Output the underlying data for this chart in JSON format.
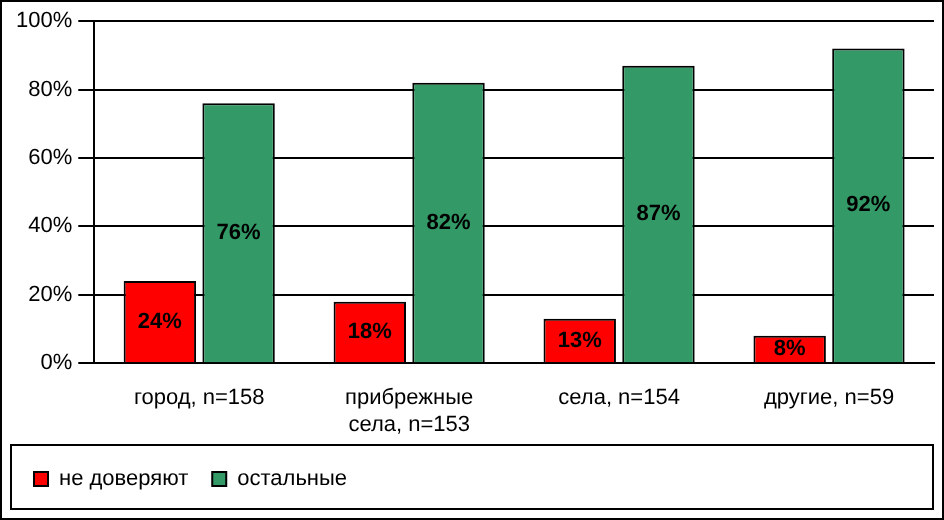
{
  "chart_data": {
    "type": "bar",
    "categories": [
      "город, n=158",
      "прибрежные села, n=153",
      "села, n=154",
      "другие, n=59"
    ],
    "series": [
      {
        "name": "не доверяют",
        "color": "#ff0000",
        "values": [
          24,
          18,
          13,
          8
        ],
        "value_labels": [
          "24%",
          "18%",
          "13%",
          "8%"
        ]
      },
      {
        "name": "остальные",
        "color": "#339966",
        "values": [
          76,
          82,
          87,
          92
        ],
        "value_labels": [
          "76%",
          "82%",
          "87%",
          "92%"
        ]
      }
    ],
    "ylim": [
      0,
      100
    ],
    "yticks": [
      {
        "value": 0,
        "label": "0%"
      },
      {
        "value": 20,
        "label": "20%"
      },
      {
        "value": 40,
        "label": "40%"
      },
      {
        "value": 60,
        "label": "60%"
      },
      {
        "value": 80,
        "label": "80%"
      },
      {
        "value": 100,
        "label": "100%"
      }
    ],
    "grid": "y",
    "legend": "bottom"
  }
}
